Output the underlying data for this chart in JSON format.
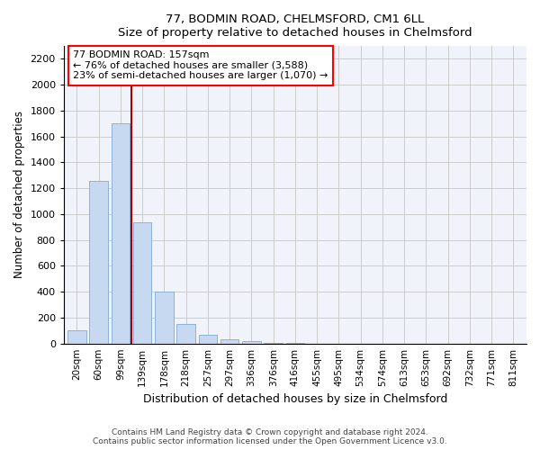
{
  "title1": "77, BODMIN ROAD, CHELMSFORD, CM1 6LL",
  "title2": "Size of property relative to detached houses in Chelmsford",
  "xlabel": "Distribution of detached houses by size in Chelmsford",
  "ylabel": "Number of detached properties",
  "categories": [
    "20sqm",
    "60sqm",
    "99sqm",
    "139sqm",
    "178sqm",
    "218sqm",
    "257sqm",
    "297sqm",
    "336sqm",
    "376sqm",
    "416sqm",
    "455sqm",
    "495sqm",
    "534sqm",
    "574sqm",
    "613sqm",
    "653sqm",
    "692sqm",
    "732sqm",
    "771sqm",
    "811sqm"
  ],
  "values": [
    100,
    1260,
    1700,
    940,
    400,
    150,
    65,
    35,
    20,
    5,
    2,
    1,
    1,
    0,
    0,
    0,
    0,
    0,
    0,
    0,
    0
  ],
  "bar_color": "#c6d9f0",
  "bar_edge_color": "#8db3d9",
  "vline_x": 2.5,
  "vline_color": "#aa0000",
  "annotation_line1": "77 BODMIN ROAD: 157sqm",
  "annotation_line2": "← 76% of detached houses are smaller (3,588)",
  "annotation_line3": "23% of semi-detached houses are larger (1,070) →",
  "annotation_box_color": "white",
  "annotation_box_edge": "red",
  "ylim": [
    0,
    2300
  ],
  "yticks": [
    0,
    200,
    400,
    600,
    800,
    1000,
    1200,
    1400,
    1600,
    1800,
    2000,
    2200
  ],
  "footer1": "Contains HM Land Registry data © Crown copyright and database right 2024.",
  "footer2": "Contains public sector information licensed under the Open Government Licence v3.0.",
  "grid_color": "#cccccc",
  "bg_color": "#f0f4fa"
}
